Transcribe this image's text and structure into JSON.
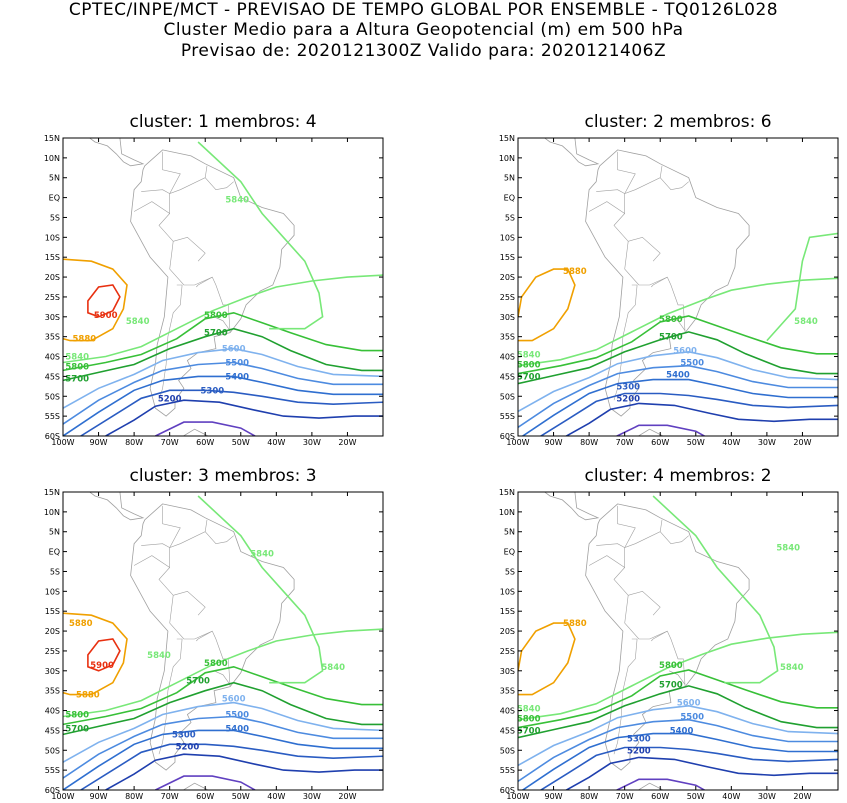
{
  "header": {
    "line1": "CPTEC/INPE/MCT - PREVISAO DE TEMPO GLOBAL POR ENSEMBLE - TQ0126L028",
    "line2": "Cluster Medio para a Altura Geopotencial (m) em 500 hPa",
    "line3": "Previsao de: 2020121300Z    Valido para: 2020121406Z"
  },
  "colors": {
    "c5200": "#1f3fae",
    "c5300": "#2a5cc2",
    "c5400": "#2f6fd0",
    "c5500": "#4d8be0",
    "c5600": "#7fb2ee",
    "c5700": "#20a030",
    "c5800": "#38c038",
    "c5840": "#78e878",
    "c5880": "#f0a000",
    "c5900": "#e83010",
    "c5100": "#6040c0",
    "coast": "#a0a0a0"
  },
  "chart_data": [
    {
      "type": "contour",
      "title": "cluster: 1   membros: 4",
      "lon_ticks": [
        "100W",
        "90W",
        "80W",
        "70W",
        "60W",
        "50W",
        "40W",
        "30W",
        "20W"
      ],
      "lat_ticks": [
        "15N",
        "10N",
        "5N",
        "EQ",
        "5S",
        "10S",
        "15S",
        "20S",
        "25S",
        "30S",
        "35S",
        "40S",
        "45S",
        "50S",
        "55S",
        "60S"
      ],
      "lon_range": [
        -100,
        -10
      ],
      "lat_range": [
        -60,
        15
      ],
      "contour_labels": [
        {
          "text": "5840",
          "lon": -51,
          "lat": -0.5,
          "color": "c5840"
        },
        {
          "text": "5840",
          "lon": -79,
          "lat": -31,
          "color": "c5840"
        },
        {
          "text": "5840",
          "lon": -96,
          "lat": -40,
          "color": "c5840"
        },
        {
          "text": "5880",
          "lon": -94,
          "lat": -35.5,
          "color": "c5880"
        },
        {
          "text": "5900",
          "lon": -88,
          "lat": -29.5,
          "color": "c5900"
        },
        {
          "text": "5800",
          "lon": -57,
          "lat": -29.5,
          "color": "c5800"
        },
        {
          "text": "5800",
          "lon": -96,
          "lat": -42.5,
          "color": "c5800"
        },
        {
          "text": "5700",
          "lon": -57,
          "lat": -34,
          "color": "c5700"
        },
        {
          "text": "5700",
          "lon": -96,
          "lat": -45.5,
          "color": "c5700"
        },
        {
          "text": "5600",
          "lon": -52,
          "lat": -38,
          "color": "c5600"
        },
        {
          "text": "5500",
          "lon": -51,
          "lat": -41.5,
          "color": "c5500"
        },
        {
          "text": "5400",
          "lon": -51,
          "lat": -45,
          "color": "c5400"
        },
        {
          "text": "5300",
          "lon": -58,
          "lat": -48.5,
          "color": "c5300"
        },
        {
          "text": "5200",
          "lon": -70,
          "lat": -50.5,
          "color": "c5200"
        }
      ]
    },
    {
      "type": "contour",
      "title": "cluster: 2   membros: 6",
      "lon_ticks": [
        "100W",
        "90W",
        "80W",
        "70W",
        "60W",
        "50W",
        "40W",
        "30W",
        "20W"
      ],
      "lat_ticks": [
        "15N",
        "10N",
        "5N",
        "EQ",
        "5S",
        "10S",
        "15S",
        "20S",
        "25S",
        "30S",
        "35S",
        "40S",
        "45S",
        "50S",
        "55S",
        "60S"
      ],
      "lon_range": [
        -100,
        -10
      ],
      "lat_range": [
        -60,
        15
      ],
      "contour_labels": [
        {
          "text": "5880",
          "lon": -84,
          "lat": -18.5,
          "color": "c5880"
        },
        {
          "text": "5840",
          "lon": -19,
          "lat": -31,
          "color": "c5840"
        },
        {
          "text": "5840",
          "lon": -97,
          "lat": -39.5,
          "color": "c5840"
        },
        {
          "text": "5800",
          "lon": -57,
          "lat": -30.5,
          "color": "c5800"
        },
        {
          "text": "5800",
          "lon": -97,
          "lat": -42,
          "color": "c5800"
        },
        {
          "text": "5700",
          "lon": -57,
          "lat": -35,
          "color": "c5700"
        },
        {
          "text": "5700",
          "lon": -97,
          "lat": -45,
          "color": "c5700"
        },
        {
          "text": "5600",
          "lon": -53,
          "lat": -38.5,
          "color": "c5600"
        },
        {
          "text": "5500",
          "lon": -51,
          "lat": -41.5,
          "color": "c5500"
        },
        {
          "text": "5400",
          "lon": -55,
          "lat": -44.5,
          "color": "c5400"
        },
        {
          "text": "5300",
          "lon": -69,
          "lat": -47.5,
          "color": "c5300"
        },
        {
          "text": "5200",
          "lon": -69,
          "lat": -50.5,
          "color": "c5200"
        }
      ]
    },
    {
      "type": "contour",
      "title": "cluster: 3   membros: 3",
      "lon_ticks": [
        "100W",
        "90W",
        "80W",
        "70W",
        "60W",
        "50W",
        "40W",
        "30W",
        "20W"
      ],
      "lat_ticks": [
        "15N",
        "10N",
        "5N",
        "EQ",
        "5S",
        "10S",
        "15S",
        "20S",
        "25S",
        "30S",
        "35S",
        "40S",
        "45S",
        "50S",
        "55S",
        "60S"
      ],
      "lon_range": [
        -100,
        -10
      ],
      "lat_range": [
        -60,
        15
      ],
      "contour_labels": [
        {
          "text": "5840",
          "lon": -44,
          "lat": -0.5,
          "color": "c5840"
        },
        {
          "text": "5880",
          "lon": -95,
          "lat": -18,
          "color": "c5880"
        },
        {
          "text": "5900",
          "lon": -89,
          "lat": -28.5,
          "color": "c5900"
        },
        {
          "text": "5880",
          "lon": -93,
          "lat": -36,
          "color": "c5880"
        },
        {
          "text": "5840",
          "lon": -73,
          "lat": -26,
          "color": "c5840"
        },
        {
          "text": "5840",
          "lon": -24,
          "lat": -29,
          "color": "c5840"
        },
        {
          "text": "5800",
          "lon": -57,
          "lat": -28,
          "color": "c5800"
        },
        {
          "text": "5800",
          "lon": -96,
          "lat": -41,
          "color": "c5800"
        },
        {
          "text": "5700",
          "lon": -62,
          "lat": -32.5,
          "color": "c5700"
        },
        {
          "text": "5700",
          "lon": -96,
          "lat": -44.5,
          "color": "c5700"
        },
        {
          "text": "5600",
          "lon": -52,
          "lat": -37,
          "color": "c5600"
        },
        {
          "text": "5500",
          "lon": -51,
          "lat": -41,
          "color": "c5500"
        },
        {
          "text": "5400",
          "lon": -51,
          "lat": -44.5,
          "color": "c5400"
        },
        {
          "text": "5300",
          "lon": -66,
          "lat": -46,
          "color": "c5300"
        },
        {
          "text": "5200",
          "lon": -65,
          "lat": -49,
          "color": "c5200"
        }
      ]
    },
    {
      "type": "contour",
      "title": "cluster: 4   membros: 2",
      "lon_ticks": [
        "100W",
        "90W",
        "80W",
        "70W",
        "60W",
        "50W",
        "40W",
        "30W",
        "20W"
      ],
      "lat_ticks": [
        "15N",
        "10N",
        "5N",
        "EQ",
        "5S",
        "10S",
        "15S",
        "20S",
        "25S",
        "30S",
        "35S",
        "40S",
        "45S",
        "50S",
        "55S",
        "60S"
      ],
      "lon_range": [
        -100,
        -10
      ],
      "lat_range": [
        -60,
        15
      ],
      "contour_labels": [
        {
          "text": "5840",
          "lon": -24,
          "lat": 1,
          "color": "c5840"
        },
        {
          "text": "5880",
          "lon": -84,
          "lat": -18,
          "color": "c5880"
        },
        {
          "text": "5840",
          "lon": -23,
          "lat": -29,
          "color": "c5840"
        },
        {
          "text": "5840",
          "lon": -97,
          "lat": -39.5,
          "color": "c5840"
        },
        {
          "text": "5800",
          "lon": -57,
          "lat": -28.5,
          "color": "c5800"
        },
        {
          "text": "5800",
          "lon": -97,
          "lat": -42,
          "color": "c5800"
        },
        {
          "text": "5700",
          "lon": -57,
          "lat": -33.5,
          "color": "c5700"
        },
        {
          "text": "5700",
          "lon": -97,
          "lat": -45,
          "color": "c5700"
        },
        {
          "text": "5600",
          "lon": -52,
          "lat": -38,
          "color": "c5600"
        },
        {
          "text": "5500",
          "lon": -51,
          "lat": -41.5,
          "color": "c5500"
        },
        {
          "text": "5400",
          "lon": -54,
          "lat": -45,
          "color": "c5400"
        },
        {
          "text": "5300",
          "lon": -66,
          "lat": -47,
          "color": "c5300"
        },
        {
          "text": "5200",
          "lon": -66,
          "lat": -50,
          "color": "c5200"
        }
      ]
    }
  ]
}
